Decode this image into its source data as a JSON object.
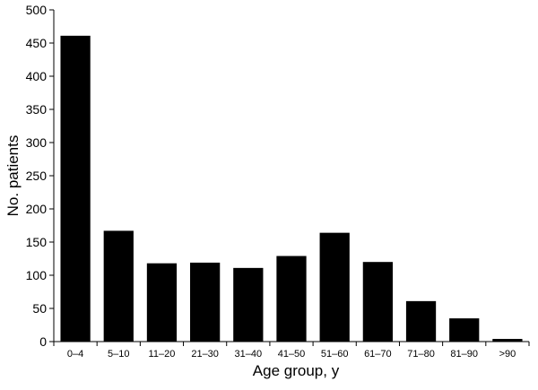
{
  "chart_data": {
    "type": "bar",
    "title": "",
    "xlabel": "Age group, y",
    "ylabel": "No. patients",
    "categories": [
      "0–4",
      "5–10",
      "11–20",
      "21–30",
      "31–40",
      "41–50",
      "51–60",
      "61–70",
      "71–80",
      "81–90",
      ">90"
    ],
    "values": [
      461,
      167,
      118,
      119,
      111,
      129,
      164,
      120,
      61,
      35,
      4
    ],
    "ylim": [
      0,
      500
    ],
    "yticks": [
      0,
      50,
      100,
      150,
      200,
      250,
      300,
      350,
      400,
      450,
      500
    ],
    "grid": false,
    "legend": "none",
    "bar_color": "#000000"
  }
}
